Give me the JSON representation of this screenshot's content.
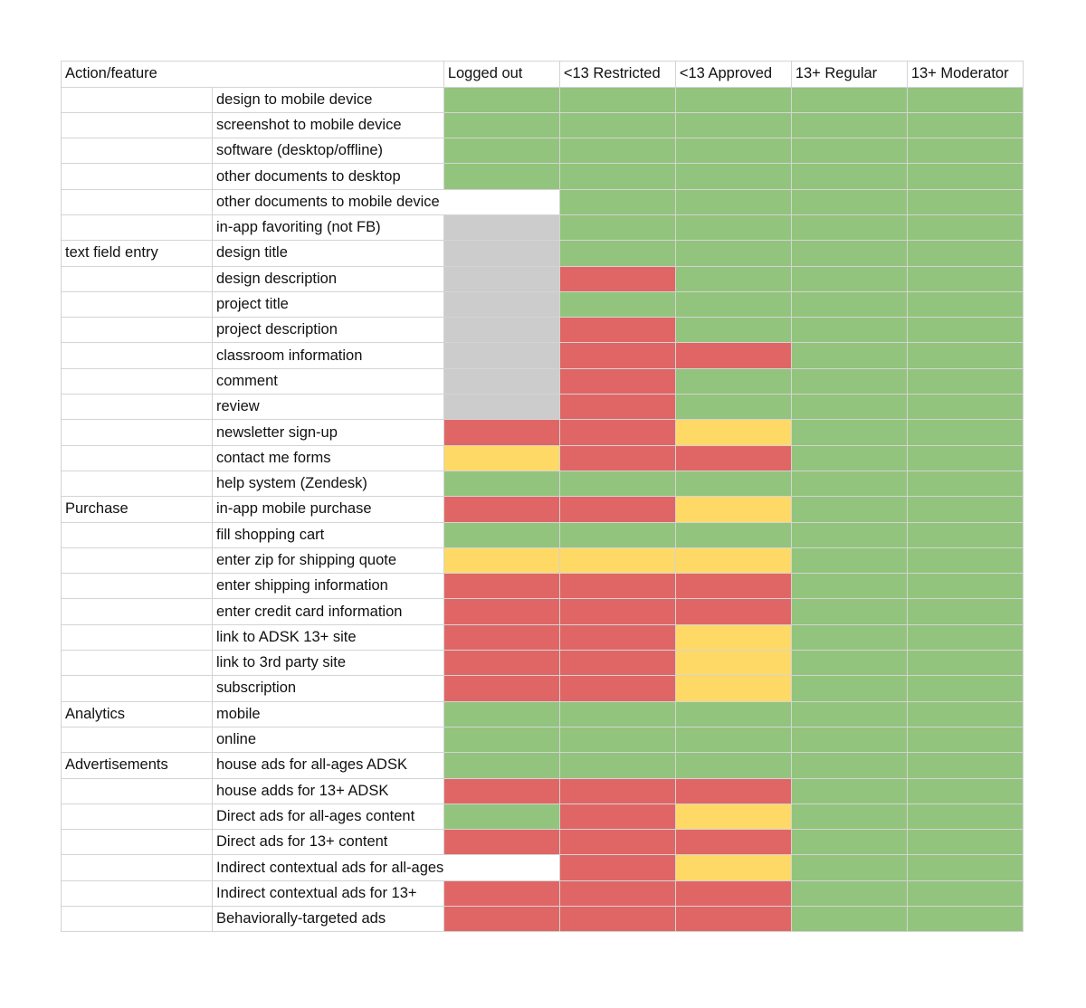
{
  "colors": {
    "G": "#93c47d",
    "R": "#e06666",
    "Y": "#ffd966",
    "N": "#cccccc",
    "W": "#ffffff"
  },
  "columns": [
    "Action/feature",
    "",
    "Logged out",
    "<13 Restricted",
    "<13 Approved",
    "13+ Regular",
    "13+ Moderator"
  ],
  "rows": [
    {
      "group": "",
      "feature": "design to mobile device",
      "cells": [
        "G",
        "G",
        "G",
        "G",
        "G"
      ]
    },
    {
      "group": "",
      "feature": "screenshot to mobile device",
      "cells": [
        "G",
        "G",
        "G",
        "G",
        "G"
      ]
    },
    {
      "group": "",
      "feature": "software (desktop/offline)",
      "cells": [
        "G",
        "G",
        "G",
        "G",
        "G"
      ]
    },
    {
      "group": "",
      "feature": "other documents to desktop",
      "cells": [
        "G",
        "G",
        "G",
        "G",
        "G"
      ]
    },
    {
      "group": "",
      "feature": "other documents to mobile device",
      "cells": [
        "W",
        "G",
        "G",
        "G",
        "G"
      ]
    },
    {
      "group": "",
      "feature": "in-app favoriting (not FB)",
      "cells": [
        "N",
        "G",
        "G",
        "G",
        "G"
      ]
    },
    {
      "group": "text field entry",
      "feature": "design title",
      "cells": [
        "N",
        "G",
        "G",
        "G",
        "G"
      ]
    },
    {
      "group": "",
      "feature": "design description",
      "cells": [
        "N",
        "R",
        "G",
        "G",
        "G"
      ]
    },
    {
      "group": "",
      "feature": "project title",
      "cells": [
        "N",
        "G",
        "G",
        "G",
        "G"
      ]
    },
    {
      "group": "",
      "feature": "project description",
      "cells": [
        "N",
        "R",
        "G",
        "G",
        "G"
      ]
    },
    {
      "group": "",
      "feature": "classroom information",
      "cells": [
        "N",
        "R",
        "R",
        "G",
        "G"
      ]
    },
    {
      "group": "",
      "feature": "comment",
      "cells": [
        "N",
        "R",
        "G",
        "G",
        "G"
      ]
    },
    {
      "group": "",
      "feature": "review",
      "cells": [
        "N",
        "R",
        "G",
        "G",
        "G"
      ]
    },
    {
      "group": "",
      "feature": "newsletter sign-up",
      "cells": [
        "R",
        "R",
        "Y",
        "G",
        "G"
      ]
    },
    {
      "group": "",
      "feature": "contact me forms",
      "cells": [
        "Y",
        "R",
        "R",
        "G",
        "G"
      ]
    },
    {
      "group": "",
      "feature": "help system (Zendesk)",
      "cells": [
        "G",
        "G",
        "G",
        "G",
        "G"
      ]
    },
    {
      "group": "Purchase",
      "feature": "in-app mobile purchase",
      "cells": [
        "R",
        "R",
        "Y",
        "G",
        "G"
      ]
    },
    {
      "group": "",
      "feature": "fill shopping cart",
      "cells": [
        "G",
        "G",
        "G",
        "G",
        "G"
      ]
    },
    {
      "group": "",
      "feature": "enter zip for shipping quote",
      "cells": [
        "Y",
        "Y",
        "Y",
        "G",
        "G"
      ]
    },
    {
      "group": "",
      "feature": "enter shipping information",
      "cells": [
        "R",
        "R",
        "R",
        "G",
        "G"
      ]
    },
    {
      "group": "",
      "feature": "enter credit card information",
      "cells": [
        "R",
        "R",
        "R",
        "G",
        "G"
      ]
    },
    {
      "group": "",
      "feature": "link to ADSK 13+ site",
      "cells": [
        "R",
        "R",
        "Y",
        "G",
        "G"
      ]
    },
    {
      "group": "",
      "feature": "link to 3rd party site",
      "cells": [
        "R",
        "R",
        "Y",
        "G",
        "G"
      ]
    },
    {
      "group": "",
      "feature": "subscription",
      "cells": [
        "R",
        "R",
        "Y",
        "G",
        "G"
      ]
    },
    {
      "group": "Analytics",
      "feature": "mobile",
      "cells": [
        "G",
        "G",
        "G",
        "G",
        "G"
      ]
    },
    {
      "group": "",
      "feature": "online",
      "cells": [
        "G",
        "G",
        "G",
        "G",
        "G"
      ]
    },
    {
      "group": "Advertisements",
      "feature": "house ads for all-ages ADSK",
      "cells": [
        "G",
        "G",
        "G",
        "G",
        "G"
      ]
    },
    {
      "group": "",
      "feature": "house adds for 13+ ADSK",
      "cells": [
        "R",
        "R",
        "R",
        "G",
        "G"
      ]
    },
    {
      "group": "",
      "feature": "Direct ads for all-ages content",
      "cells": [
        "G",
        "R",
        "Y",
        "G",
        "G"
      ]
    },
    {
      "group": "",
      "feature": "Direct ads for 13+ content",
      "cells": [
        "R",
        "R",
        "R",
        "G",
        "G"
      ]
    },
    {
      "group": "",
      "feature": "Indirect contextual ads for all-ages",
      "cells": [
        "W",
        "R",
        "Y",
        "G",
        "G"
      ]
    },
    {
      "group": "",
      "feature": "Indirect contextual ads for 13+",
      "cells": [
        "R",
        "R",
        "R",
        "G",
        "G"
      ]
    },
    {
      "group": "",
      "feature": "Behaviorally-targeted ads",
      "cells": [
        "R",
        "R",
        "R",
        "G",
        "G"
      ]
    }
  ]
}
